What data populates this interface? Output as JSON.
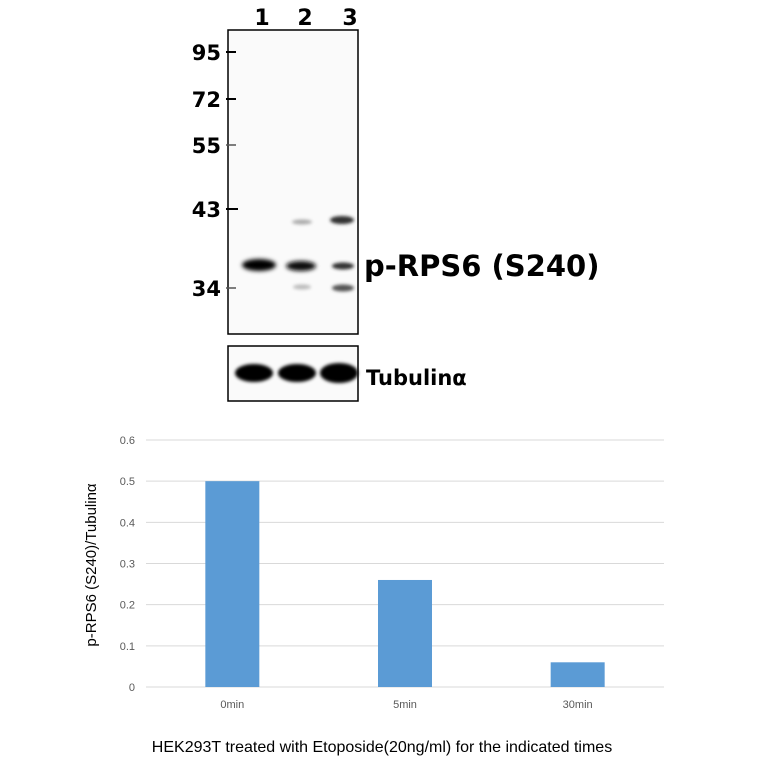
{
  "blot": {
    "lanes": [
      "1",
      "2",
      "3"
    ],
    "markers": [
      "95",
      "72",
      "55",
      "43",
      "34"
    ],
    "target_label": "p-RPS6 (S240)",
    "loading_label": "Tubulinα"
  },
  "chart_data": {
    "type": "bar",
    "categories": [
      "0min",
      "5min",
      "30min"
    ],
    "values": [
      0.5,
      0.26,
      0.06
    ],
    "title": "",
    "xlabel": "HEK293T treated with Etoposide(20ng/ml) for the indicated times",
    "ylabel": "p-RPS6 (S240)/Tubulinα",
    "ylim": [
      0,
      0.6
    ],
    "yticks": [
      "0",
      "0.1",
      "0.2",
      "0.3",
      "0.4",
      "0.5",
      "0.6"
    ],
    "grid": true,
    "legend": "none",
    "bar_color": "#5b9bd5"
  }
}
